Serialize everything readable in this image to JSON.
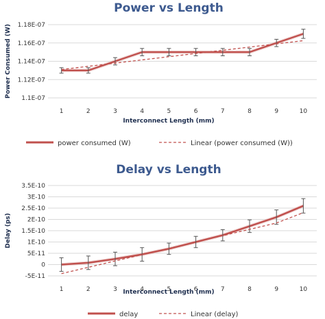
{
  "chart_data": [
    {
      "type": "line",
      "title": "Power vs Length",
      "xlabel": "Interconnect Length (mm)",
      "ylabel": "Power Consumed (W)",
      "x": [
        1,
        2,
        3,
        4,
        5,
        6,
        7,
        8,
        9,
        10
      ],
      "ylim": [
        1.1e-07,
        1.18e-07
      ],
      "yticks": [
        "1.1E-07",
        "1.12E-07",
        "1.14E-07",
        "1.16E-07",
        "1.18E-07"
      ],
      "ytick_values": [
        1.1e-07,
        1.12e-07,
        1.14e-07,
        1.16e-07,
        1.18e-07
      ],
      "grid": true,
      "legend_position": "bottom",
      "series": [
        {
          "name": "power consumed (W)",
          "style": "solid",
          "color": "#c0504d",
          "values": [
            1.13e-07,
            1.13e-07,
            1.14e-07,
            1.15e-07,
            1.15e-07,
            1.15e-07,
            1.15e-07,
            1.15e-07,
            1.16e-07,
            1.17e-07
          ],
          "error": [
            3e-10,
            3e-10,
            4e-10,
            4e-10,
            4e-10,
            4e-10,
            4e-10,
            4e-10,
            4e-10,
            5e-10
          ]
        },
        {
          "name": "Linear (power consumed (W))",
          "style": "dashed",
          "color": "#c0504d",
          "values": [
            1.131e-07,
            1.1345e-07,
            1.138e-07,
            1.1415e-07,
            1.145e-07,
            1.1485e-07,
            1.152e-07,
            1.1555e-07,
            1.159e-07,
            1.1625e-07
          ]
        }
      ]
    },
    {
      "type": "line",
      "title": "Delay vs Length",
      "xlabel": "Interconnect Length (mm)",
      "ylabel": "Delay (ps)",
      "x": [
        1,
        2,
        3,
        4,
        5,
        6,
        7,
        8,
        9,
        10
      ],
      "ylim": [
        -5e-11,
        3.5e-10
      ],
      "yticks": [
        "-5E-11",
        "0",
        "5E-11",
        "1E-10",
        "1.5E-10",
        "2E-10",
        "2.5E-10",
        "3E-10",
        "3.5E-10"
      ],
      "ytick_values": [
        -5e-11,
        0,
        5e-11,
        1e-10,
        1.5e-10,
        2e-10,
        2.5e-10,
        3e-10,
        3.5e-10
      ],
      "grid": true,
      "legend_position": "bottom",
      "series": [
        {
          "name": "delay",
          "style": "solid",
          "color": "#c0504d",
          "values": [
            0,
            8e-12,
            2.5e-11,
            4.5e-11,
            7e-11,
            1e-10,
            1.3e-10,
            1.7e-10,
            2.1e-10,
            2.6e-10
          ],
          "error": [
            3e-11,
            3e-11,
            3e-11,
            3e-11,
            2.5e-11,
            2.5e-11,
            2.5e-11,
            2.8e-11,
            3.2e-11,
            3.2e-11
          ]
        },
        {
          "name": "Linear (delay)",
          "style": "dashed",
          "color": "#c0504d",
          "values": [
            -4e-11,
            -1.2e-11,
            1.6e-11,
            4.4e-11,
            7.2e-11,
            1e-10,
            1.28e-10,
            1.56e-10,
            1.84e-10,
            2.3e-10
          ]
        }
      ]
    }
  ]
}
